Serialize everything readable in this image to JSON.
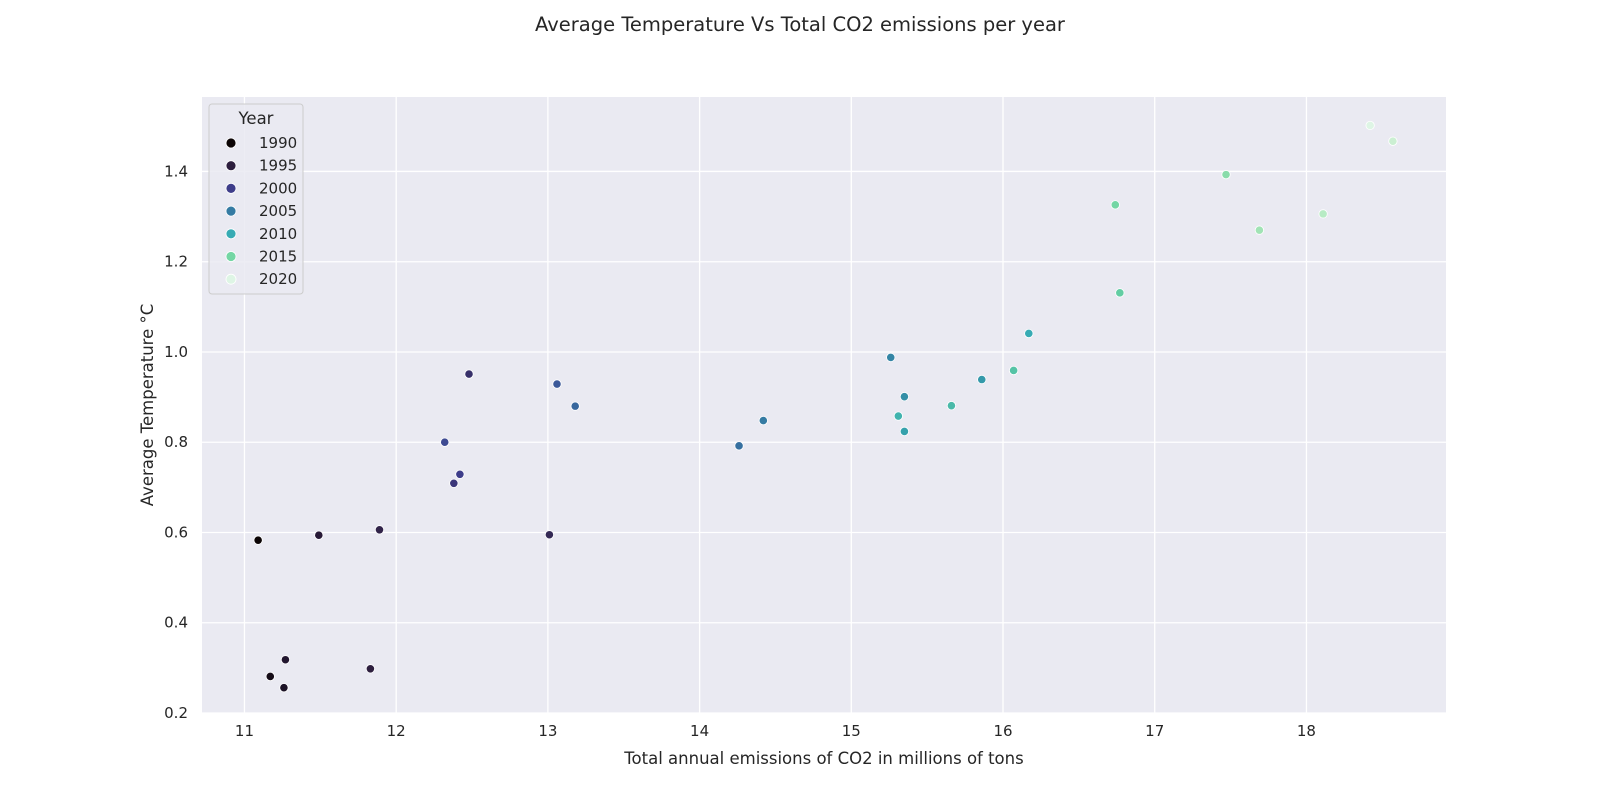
{
  "chart_data": {
    "type": "scatter",
    "title": "Average Temperature Vs Total CO2 emissions per year",
    "xlabel": "Total annual emissions of CO2 in millions of tons",
    "ylabel": "Average Temperature °C",
    "xlim": [
      10.72,
      18.92
    ],
    "ylim": [
      0.2,
      1.565
    ],
    "xticks": [
      11,
      12,
      13,
      14,
      15,
      16,
      17,
      18
    ],
    "yticks": [
      0.2,
      0.4,
      0.6,
      0.8,
      1.0,
      1.2,
      1.4
    ],
    "grid": true,
    "legend": {
      "title": "Year",
      "placement": "upper-left",
      "entries": [
        {
          "label": "1990",
          "color": "#0b0405"
        },
        {
          "label": "1995",
          "color": "#2d1e3e"
        },
        {
          "label": "2000",
          "color": "#3e3d8a"
        },
        {
          "label": "2005",
          "color": "#357ba3"
        },
        {
          "label": "2010",
          "color": "#37abb4"
        },
        {
          "label": "2015",
          "color": "#74d6a4"
        },
        {
          "label": "2020",
          "color": "#def5e5"
        }
      ]
    },
    "points": [
      {
        "year": 1990,
        "x": 11.09,
        "y": 0.583,
        "color": "#0b0405"
      },
      {
        "year": 1991,
        "x": 11.17,
        "y": 0.281,
        "color": "#150c17"
      },
      {
        "year": 1992,
        "x": 11.26,
        "y": 0.256,
        "color": "#1c1226"
      },
      {
        "year": 1993,
        "x": 11.27,
        "y": 0.318,
        "color": "#22162f"
      },
      {
        "year": 1994,
        "x": 11.49,
        "y": 0.594,
        "color": "#281a37"
      },
      {
        "year": 1995,
        "x": 11.83,
        "y": 0.298,
        "color": "#2d1e3e"
      },
      {
        "year": 1996,
        "x": 11.89,
        "y": 0.606,
        "color": "#312349"
      },
      {
        "year": 1997,
        "x": 13.01,
        "y": 0.595,
        "color": "#342955"
      },
      {
        "year": 1998,
        "x": 12.48,
        "y": 0.951,
        "color": "#37306a"
      },
      {
        "year": 1999,
        "x": 12.38,
        "y": 0.709,
        "color": "#3b367a"
      },
      {
        "year": 2000,
        "x": 12.42,
        "y": 0.729,
        "color": "#3e3d8a"
      },
      {
        "year": 2001,
        "x": 12.32,
        "y": 0.8,
        "color": "#3e4a92"
      },
      {
        "year": 2002,
        "x": 13.06,
        "y": 0.929,
        "color": "#3b5899"
      },
      {
        "year": 2003,
        "x": 13.18,
        "y": 0.88,
        "color": "#38679d"
      },
      {
        "year": 2004,
        "x": 14.26,
        "y": 0.792,
        "color": "#3670a0"
      },
      {
        "year": 2005,
        "x": 14.42,
        "y": 0.848,
        "color": "#357ba3"
      },
      {
        "year": 2006,
        "x": 15.26,
        "y": 0.988,
        "color": "#3485a5"
      },
      {
        "year": 2007,
        "x": 15.35,
        "y": 0.901,
        "color": "#348fa7"
      },
      {
        "year": 2008,
        "x": 15.86,
        "y": 0.939,
        "color": "#3499aa"
      },
      {
        "year": 2009,
        "x": 15.35,
        "y": 0.824,
        "color": "#35a1ac"
      },
      {
        "year": 2010,
        "x": 16.17,
        "y": 1.041,
        "color": "#37abb4"
      },
      {
        "year": 2011,
        "x": 15.31,
        "y": 0.858,
        "color": "#40b3ae"
      },
      {
        "year": 2012,
        "x": 15.66,
        "y": 0.881,
        "color": "#4ab9a9"
      },
      {
        "year": 2013,
        "x": 16.07,
        "y": 0.959,
        "color": "#55c3a6"
      },
      {
        "year": 2014,
        "x": 16.77,
        "y": 1.131,
        "color": "#63cda3"
      },
      {
        "year": 2015,
        "x": 16.74,
        "y": 1.326,
        "color": "#74d6a4"
      },
      {
        "year": 2016,
        "x": 17.47,
        "y": 1.393,
        "color": "#89dcaa"
      },
      {
        "year": 2017,
        "x": 17.69,
        "y": 1.27,
        "color": "#a1e3b5"
      },
      {
        "year": 2018,
        "x": 18.11,
        "y": 1.306,
        "color": "#b7ebc4"
      },
      {
        "year": 2019,
        "x": 18.57,
        "y": 1.467,
        "color": "#cbefd2"
      },
      {
        "year": 2020,
        "x": 18.42,
        "y": 1.502,
        "color": "#def5e5"
      }
    ]
  }
}
